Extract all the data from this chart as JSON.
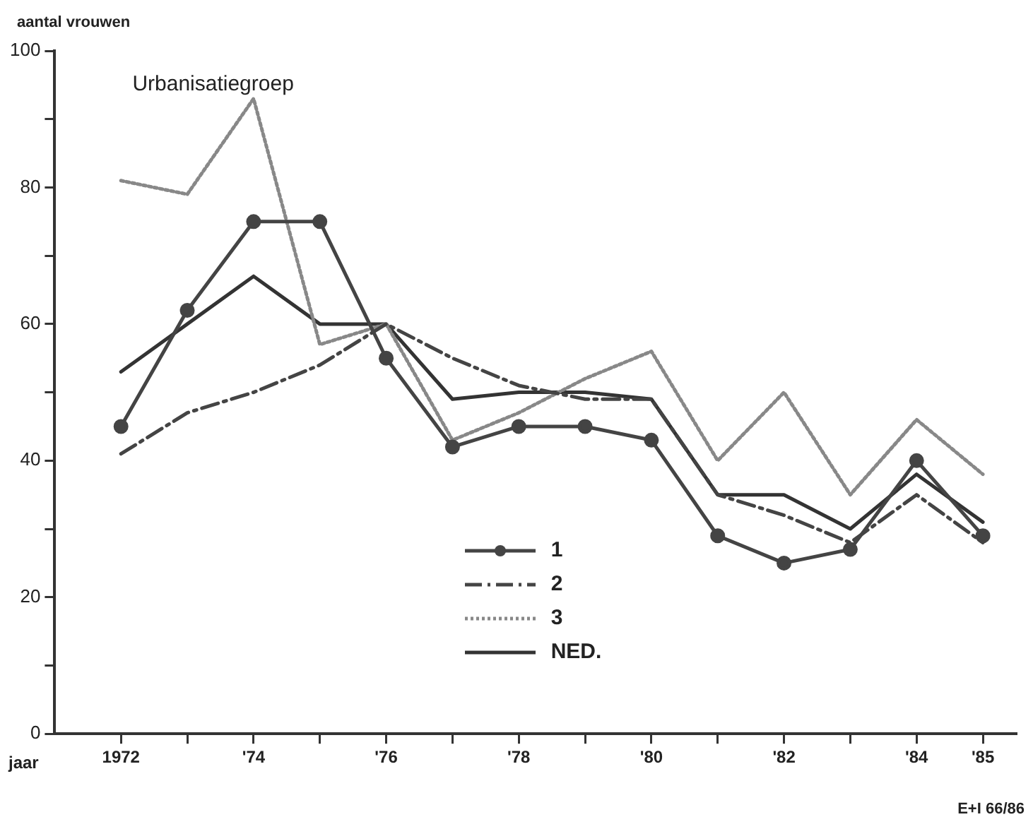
{
  "chart_data": {
    "type": "line",
    "ylabel": "aantal vrouwen",
    "xlabel": "jaar",
    "annotations": [
      "Urbanisatiegroep",
      "E+I 66/86"
    ],
    "x": [
      1972,
      1973,
      1974,
      1975,
      1976,
      1977,
      1978,
      1979,
      1980,
      1981,
      1982,
      1983,
      1984,
      1985
    ],
    "series": [
      {
        "name": "1",
        "color": "#444444",
        "marker": "circle",
        "line_style": "solid",
        "values": [
          45,
          62,
          75,
          75,
          55,
          42,
          45,
          45,
          43,
          29,
          25,
          27,
          40,
          29
        ]
      },
      {
        "name": "2",
        "color": "#444444",
        "marker": "none",
        "line_style": "dashed",
        "values": [
          41,
          47,
          50,
          54,
          60,
          55,
          51,
          49,
          49,
          35,
          32,
          28,
          35,
          28
        ]
      },
      {
        "name": "3",
        "color": "#888888",
        "marker": "none",
        "line_style": "dotted",
        "values": [
          81,
          79,
          93,
          57,
          60,
          43,
          47,
          52,
          56,
          40,
          50,
          35,
          46,
          38
        ]
      },
      {
        "name": "NED.",
        "color": "#333333",
        "marker": "none",
        "line_style": "solid",
        "values": [
          53,
          60,
          67,
          60,
          60,
          49,
          50,
          50,
          49,
          35,
          35,
          30,
          38,
          31
        ]
      }
    ],
    "xlim": [
      1971,
      1985.5
    ],
    "xticks": [
      {
        "value": 1972,
        "label": "1972"
      },
      {
        "value": 1973,
        "label": null
      },
      {
        "value": 1974,
        "label": "'74"
      },
      {
        "value": 1975,
        "label": null
      },
      {
        "value": 1976,
        "label": "'76"
      },
      {
        "value": 1977,
        "label": null
      },
      {
        "value": 1978,
        "label": "'78"
      },
      {
        "value": 1979,
        "label": null
      },
      {
        "value": 1980,
        "label": "'80"
      },
      {
        "value": 1981,
        "label": null
      },
      {
        "value": 1982,
        "label": "'82"
      },
      {
        "value": 1983,
        "label": null
      },
      {
        "value": 1984,
        "label": "'84"
      },
      {
        "value": 1985,
        "label": "'85"
      }
    ],
    "ylim": [
      0,
      100
    ],
    "yticks": [
      0,
      {
        "value": 10,
        "label": null
      },
      20,
      {
        "value": 30,
        "label": null
      },
      40,
      {
        "value": 50,
        "label": null
      },
      60,
      {
        "value": 70,
        "label": null
      },
      80,
      {
        "value": 90,
        "label": null
      },
      100
    ],
    "grid": false,
    "legend": "bottom"
  }
}
